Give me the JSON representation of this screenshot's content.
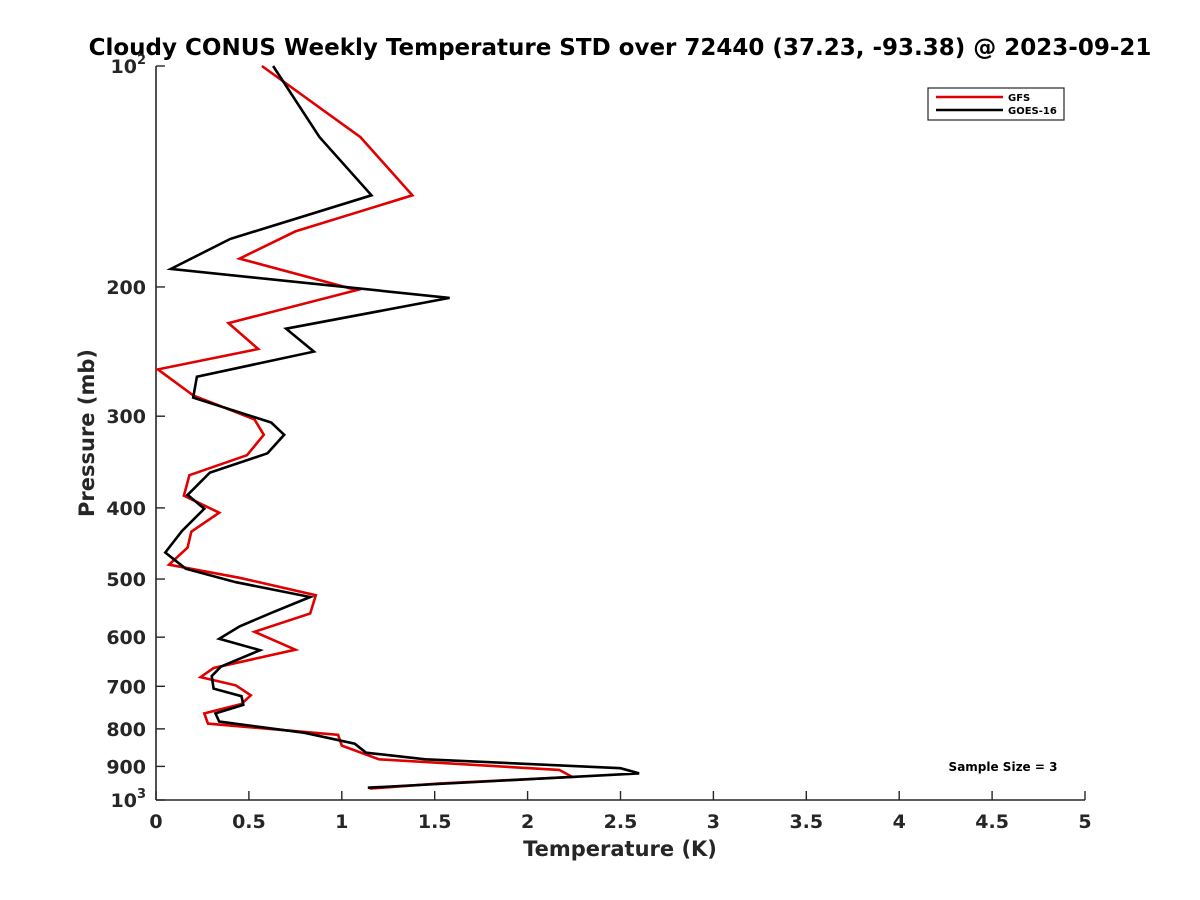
{
  "chart_data": {
    "type": "line",
    "title": "Cloudy CONUS Weekly Temperature STD over 72440 (37.23, -93.38) @ 2023-09-21",
    "xlabel": "Temperature (K)",
    "ylabel": "Pressure (mb)",
    "xlim": [
      0,
      5
    ],
    "ylim": [
      100,
      1000
    ],
    "y_scale": "log",
    "y_reversed": true,
    "grid": false,
    "legend_position": "top-right",
    "x_ticks": [
      {
        "value": 0,
        "label": "0"
      },
      {
        "value": 0.5,
        "label": "0.5"
      },
      {
        "value": 1,
        "label": "1"
      },
      {
        "value": 1.5,
        "label": "1.5"
      },
      {
        "value": 2,
        "label": "2"
      },
      {
        "value": 2.5,
        "label": "2.5"
      },
      {
        "value": 3,
        "label": "3"
      },
      {
        "value": 3.5,
        "label": "3.5"
      },
      {
        "value": 4,
        "label": "4"
      },
      {
        "value": 4.5,
        "label": "4.5"
      },
      {
        "value": 5,
        "label": "5"
      }
    ],
    "y_ticks": [
      {
        "value": 100,
        "label": "10",
        "sup": "2"
      },
      {
        "value": 200,
        "label": "200",
        "sup": ""
      },
      {
        "value": 300,
        "label": "300",
        "sup": ""
      },
      {
        "value": 400,
        "label": "400",
        "sup": ""
      },
      {
        "value": 500,
        "label": "500",
        "sup": ""
      },
      {
        "value": 600,
        "label": "600",
        "sup": ""
      },
      {
        "value": 700,
        "label": "700",
        "sup": ""
      },
      {
        "value": 800,
        "label": "800",
        "sup": ""
      },
      {
        "value": 900,
        "label": "900",
        "sup": ""
      },
      {
        "value": 1000,
        "label": "10",
        "sup": "3"
      }
    ],
    "series": [
      {
        "name": "GFS",
        "color": "#e00000",
        "points": [
          [
            0.57,
            100
          ],
          [
            1.1,
            125
          ],
          [
            1.38,
            150
          ],
          [
            0.75,
            168
          ],
          [
            0.45,
            183
          ],
          [
            1.08,
            202
          ],
          [
            0.39,
            224
          ],
          [
            0.55,
            243
          ],
          [
            0.01,
            259
          ],
          [
            0.2,
            281
          ],
          [
            0.53,
            303
          ],
          [
            0.58,
            318
          ],
          [
            0.49,
            339
          ],
          [
            0.18,
            361
          ],
          [
            0.15,
            385
          ],
          [
            0.34,
            406
          ],
          [
            0.19,
            431
          ],
          [
            0.17,
            453
          ],
          [
            0.07,
            478
          ],
          [
            0.45,
            498
          ],
          [
            0.86,
            526
          ],
          [
            0.83,
            557
          ],
          [
            0.53,
            590
          ],
          [
            0.75,
            624
          ],
          [
            0.31,
            661
          ],
          [
            0.24,
            680
          ],
          [
            0.43,
            698
          ],
          [
            0.51,
            720
          ],
          [
            0.46,
            740
          ],
          [
            0.26,
            762
          ],
          [
            0.28,
            787
          ],
          [
            0.98,
            815
          ],
          [
            1.0,
            843
          ],
          [
            1.2,
            880
          ],
          [
            2.17,
            910
          ],
          [
            2.24,
            930
          ],
          [
            1.52,
            950
          ],
          [
            1.15,
            965
          ]
        ]
      },
      {
        "name": "GOES-16",
        "color": "#000000",
        "points": [
          [
            0.63,
            100
          ],
          [
            0.88,
            125
          ],
          [
            1.16,
            150
          ],
          [
            0.4,
            172
          ],
          [
            0.08,
            189
          ],
          [
            1.58,
            207
          ],
          [
            0.7,
            228
          ],
          [
            0.85,
            245
          ],
          [
            0.22,
            265
          ],
          [
            0.2,
            283
          ],
          [
            0.62,
            306
          ],
          [
            0.69,
            318
          ],
          [
            0.6,
            337
          ],
          [
            0.29,
            358
          ],
          [
            0.17,
            384
          ],
          [
            0.26,
            401
          ],
          [
            0.14,
            430
          ],
          [
            0.05,
            460
          ],
          [
            0.16,
            484
          ],
          [
            0.43,
            505
          ],
          [
            0.83,
            529
          ],
          [
            0.62,
            556
          ],
          [
            0.45,
            580
          ],
          [
            0.34,
            603
          ],
          [
            0.56,
            625
          ],
          [
            0.35,
            658
          ],
          [
            0.3,
            678
          ],
          [
            0.31,
            705
          ],
          [
            0.46,
            722
          ],
          [
            0.47,
            742
          ],
          [
            0.32,
            762
          ],
          [
            0.34,
            782
          ],
          [
            0.8,
            810
          ],
          [
            1.07,
            838
          ],
          [
            1.13,
            862
          ],
          [
            1.45,
            880
          ],
          [
            2.5,
            905
          ],
          [
            2.6,
            920
          ],
          [
            1.14,
            962
          ]
        ]
      }
    ],
    "annotation": "Sample Size = 3"
  }
}
